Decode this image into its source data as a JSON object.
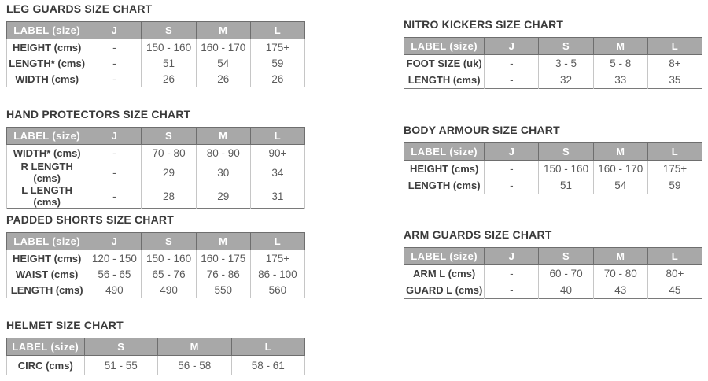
{
  "page": {
    "background": "#ffffff"
  },
  "colors": {
    "page_bg": "#ffffff",
    "title_text": "#3a3a3a",
    "header_bg": "#a8a8a8",
    "header_text": "#ffffff",
    "header_border": "#6e6e6e",
    "table_border": "#7a7a7a",
    "cell_border": "#c6c6c6",
    "row_label_text": "#3e3e3e",
    "value_text": "#5a5a5a"
  },
  "charts": [
    {
      "id": "leg-guards",
      "title": "LEG GUARDS SIZE CHART",
      "columns": [
        "LABEL (size)",
        "J",
        "S",
        "M",
        "L"
      ],
      "rows": [
        {
          "label": "HEIGHT (cms)",
          "values": [
            "-",
            "150 - 160",
            "160 - 170",
            "175+"
          ]
        },
        {
          "label": "LENGTH* (cms)",
          "values": [
            "-",
            "51",
            "54",
            "59"
          ]
        },
        {
          "label": "WIDTH (cms)",
          "values": [
            "-",
            "26",
            "26",
            "26"
          ]
        }
      ]
    },
    {
      "id": "nitro-kickers",
      "title": "NITRO KICKERS SIZE CHART",
      "columns": [
        "LABEL (size)",
        "J",
        "S",
        "M",
        "L"
      ],
      "rows": [
        {
          "label": "FOOT SIZE (uk)",
          "values": [
            "-",
            "3 - 5",
            "5 - 8",
            "8+"
          ]
        },
        {
          "label": "LENGTH (cms)",
          "values": [
            "-",
            "32",
            "33",
            "35"
          ]
        }
      ]
    },
    {
      "id": "hand-protectors",
      "title": "HAND PROTECTORS SIZE CHART",
      "columns": [
        "LABEL (size)",
        "J",
        "S",
        "M",
        "L"
      ],
      "rows": [
        {
          "label": "WIDTH* (cms)",
          "values": [
            "-",
            "70 - 80",
            "80 - 90",
            "90+"
          ]
        },
        {
          "label": "R LENGTH (cms)",
          "values": [
            "-",
            "29",
            "30",
            "34"
          ]
        },
        {
          "label": "L LENGTH (cms)",
          "values": [
            "-",
            "28",
            "29",
            "31"
          ]
        }
      ]
    },
    {
      "id": "body-armour",
      "title": "BODY ARMOUR SIZE CHART",
      "columns": [
        "LABEL (size)",
        "J",
        "S",
        "M",
        "L"
      ],
      "rows": [
        {
          "label": "HEIGHT (cms)",
          "values": [
            "-",
            "150 - 160",
            "160 - 170",
            "175+"
          ]
        },
        {
          "label": "LENGTH (cms)",
          "values": [
            "-",
            "51",
            "54",
            "59"
          ]
        }
      ]
    },
    {
      "id": "padded-shorts",
      "title": "PADDED SHORTS SIZE CHART",
      "columns": [
        "LABEL (size)",
        "J",
        "S",
        "M",
        "L"
      ],
      "rows": [
        {
          "label": "HEIGHT (cms)",
          "values": [
            "120 - 150",
            "150 - 160",
            "160 - 175",
            "175+"
          ]
        },
        {
          "label": "WAIST (cms)",
          "values": [
            "56 - 65",
            "65 - 76",
            "76 - 86",
            "86 - 100"
          ]
        },
        {
          "label": "LENGTH (cms)",
          "values": [
            "490",
            "490",
            "550",
            "560"
          ]
        }
      ]
    },
    {
      "id": "arm-guards",
      "title": "ARM GUARDS SIZE CHART",
      "columns": [
        "LABEL (size)",
        "J",
        "S",
        "M",
        "L"
      ],
      "rows": [
        {
          "label": "ARM L (cms)",
          "values": [
            "-",
            "60 - 70",
            "70 - 80",
            "80+"
          ]
        },
        {
          "label": "GUARD L (cms)",
          "values": [
            "-",
            "40",
            "43",
            "45"
          ]
        }
      ]
    },
    {
      "id": "helmet",
      "title": "HELMET SIZE CHART",
      "columns": [
        "LABEL (size)",
        "S",
        "M",
        "L"
      ],
      "rows": [
        {
          "label": "CIRC (cms)",
          "values": [
            "51 - 55",
            "56 - 58",
            "58 - 61"
          ]
        }
      ]
    }
  ]
}
